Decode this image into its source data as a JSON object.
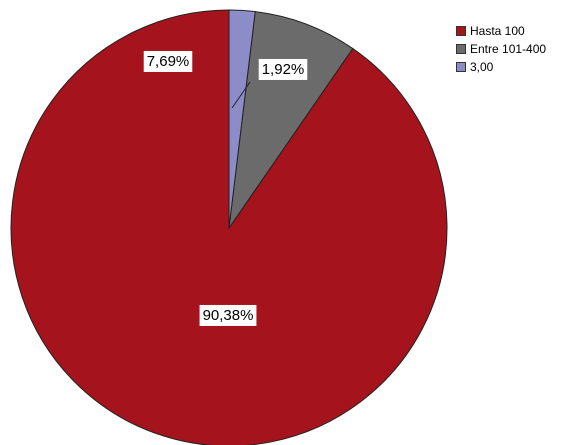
{
  "chart_data": {
    "type": "pie",
    "title": "",
    "series": [
      {
        "name": "Hasta 100",
        "value": 90.38,
        "label": "90,38%",
        "color": "#a5141c"
      },
      {
        "name": "Entre 101-400",
        "value": 7.69,
        "label": "7,69%",
        "color": "#6b6b6b"
      },
      {
        "name": "3,00",
        "value": 1.92,
        "label": "1,92%",
        "color": "#8c8cc8"
      }
    ],
    "legend": "top-right"
  }
}
